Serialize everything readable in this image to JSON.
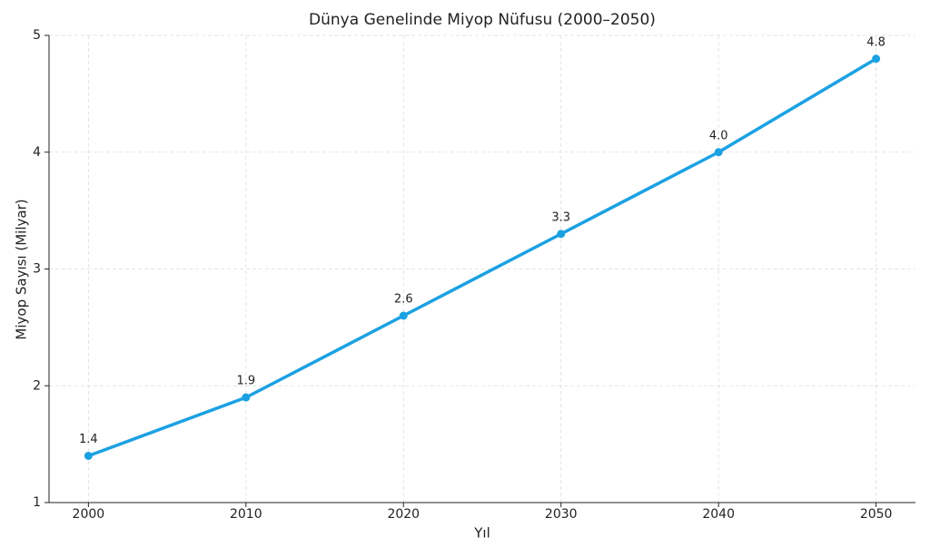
{
  "chart_data": {
    "type": "line",
    "title": "Dünya Genelinde Miyop Nüfusu (2000–2050)",
    "x_label": "Yıl",
    "y_label": "Miyop Sayısı (Milyar)",
    "x": [
      2000,
      2010,
      2020,
      2030,
      2040,
      2050
    ],
    "series": [
      {
        "name": "Miyop Sayısı",
        "color": "#1ba1e2",
        "values": [
          1.4,
          1.9,
          2.6,
          3.3,
          4.0,
          4.8
        ],
        "value_labels": [
          "1.4",
          "1.9",
          "2.6",
          "3.3",
          "4.0",
          "4.8"
        ]
      }
    ],
    "xlim": [
      1997.5,
      2052.5
    ],
    "xticks": [
      2000,
      2010,
      2020,
      2030,
      2040,
      2050
    ],
    "ylim": [
      1,
      5
    ],
    "yticks": [
      1,
      2,
      3,
      4,
      5
    ],
    "grid": true
  }
}
